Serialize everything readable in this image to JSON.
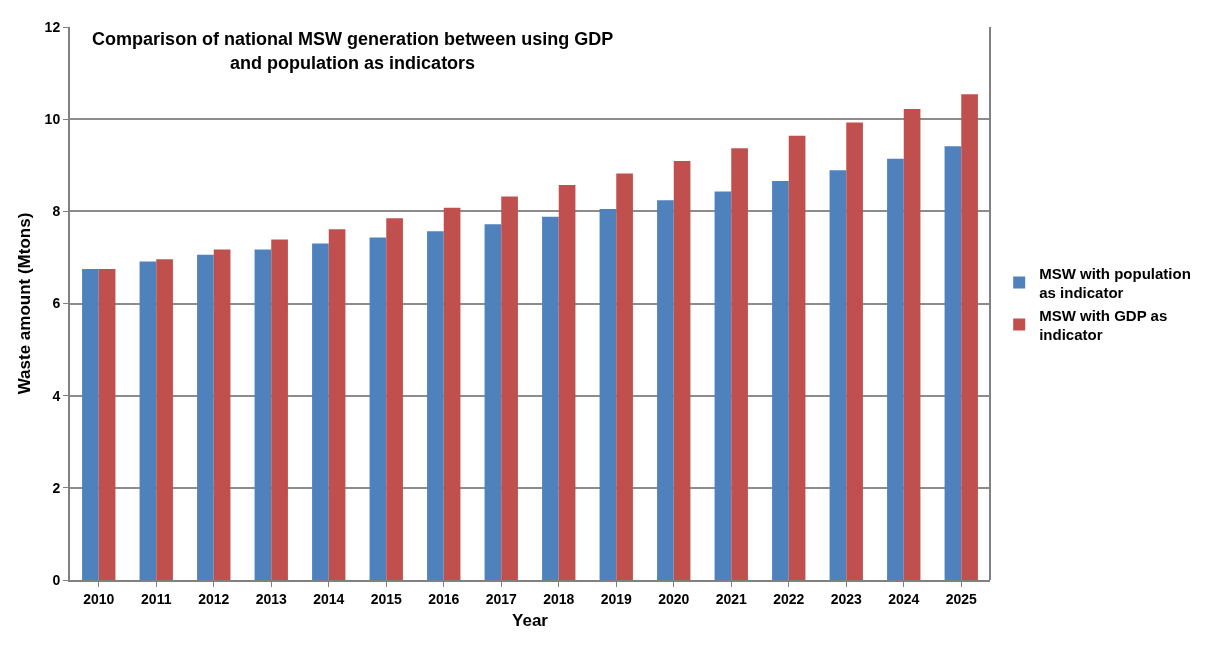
{
  "chart_data": {
    "type": "bar",
    "title": "Comparison of national MSW generation between using GDP and population as indicators",
    "xlabel": "Year",
    "ylabel": "Waste amount (Mtons)",
    "categories": [
      "2010",
      "2011",
      "2012",
      "2013",
      "2014",
      "2015",
      "2016",
      "2017",
      "2018",
      "2019",
      "2020",
      "2021",
      "2022",
      "2023",
      "2024",
      "2025"
    ],
    "series": [
      {
        "name": "MSW with population as indicator",
        "color": "#4f81bd",
        "values": [
          6.75,
          6.91,
          7.06,
          7.17,
          7.3,
          7.43,
          7.57,
          7.72,
          7.88,
          8.05,
          8.24,
          8.43,
          8.66,
          8.89,
          9.14,
          9.41
        ]
      },
      {
        "name": "MSW with GDP as indicator",
        "color": "#c0504d",
        "values": [
          6.75,
          6.96,
          7.17,
          7.39,
          7.61,
          7.85,
          8.08,
          8.32,
          8.57,
          8.82,
          9.09,
          9.37,
          9.64,
          9.93,
          10.22,
          10.54
        ]
      }
    ],
    "ylim": [
      0,
      12
    ],
    "yticks": [
      0,
      2,
      4,
      6,
      8,
      10,
      12
    ],
    "grid": "y",
    "legend": "right"
  }
}
